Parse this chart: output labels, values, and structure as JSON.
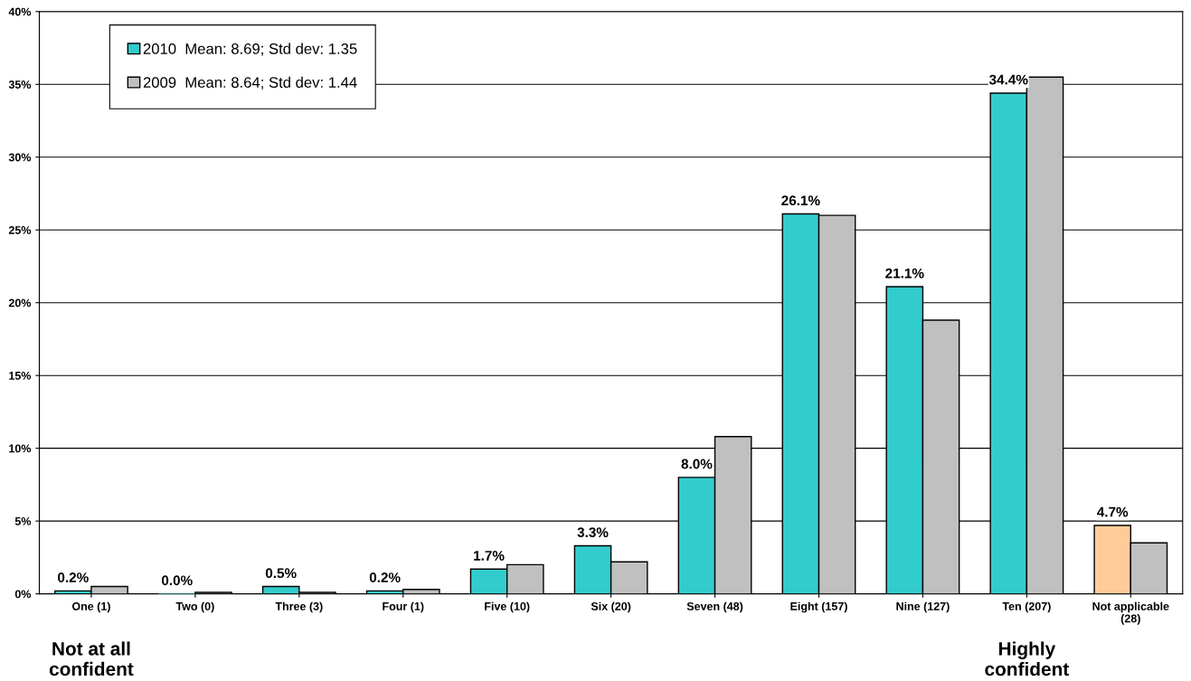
{
  "chart_data": {
    "type": "bar",
    "categories": [
      "One (1)",
      "Two (0)",
      "Three (3)",
      "Four (1)",
      "Five (10)",
      "Six (20)",
      "Seven (48)",
      "Eight (157)",
      "Nine (127)",
      "Ten (207)",
      "Not applicable\n(28)"
    ],
    "series": [
      {
        "name": "2010  Mean: 8.69; Std dev: 1.35",
        "color": "#33cccc",
        "colors": [
          "#33cccc",
          "#33cccc",
          "#33cccc",
          "#33cccc",
          "#33cccc",
          "#33cccc",
          "#33cccc",
          "#33cccc",
          "#33cccc",
          "#33cccc",
          "#ffcc99"
        ],
        "values": [
          0.2,
          0.0,
          0.5,
          0.2,
          1.7,
          3.3,
          8.0,
          26.1,
          21.1,
          34.4,
          4.7
        ],
        "value_labels": [
          "0.2%",
          "0.0%",
          "0.5%",
          "0.2%",
          "1.7%",
          "3.3%",
          "8.0%",
          "26.1%",
          "21.1%",
          "34.4%",
          "4.7%"
        ]
      },
      {
        "name": "2009  Mean: 8.64; Std dev: 1.44",
        "color": "#c0c0c0",
        "values": [
          0.5,
          0.1,
          0.1,
          0.3,
          2.0,
          2.2,
          10.8,
          26.0,
          18.8,
          35.5,
          3.5
        ]
      }
    ],
    "ylim": [
      0,
      40
    ],
    "yticks": [
      {
        "value": 0,
        "label": "0%"
      },
      {
        "value": 5,
        "label": "5%"
      },
      {
        "value": 10,
        "label": "10%"
      },
      {
        "value": 15,
        "label": "15%"
      },
      {
        "value": 20,
        "label": "20%"
      },
      {
        "value": 25,
        "label": "25%"
      },
      {
        "value": 30,
        "label": "30%"
      },
      {
        "value": 35,
        "label": "35%"
      },
      {
        "value": 40,
        "label": "40%"
      }
    ],
    "grid": "y",
    "legend": "top left",
    "annotations": [
      "Not at all\nconfident",
      "Highly\nconfident"
    ]
  }
}
